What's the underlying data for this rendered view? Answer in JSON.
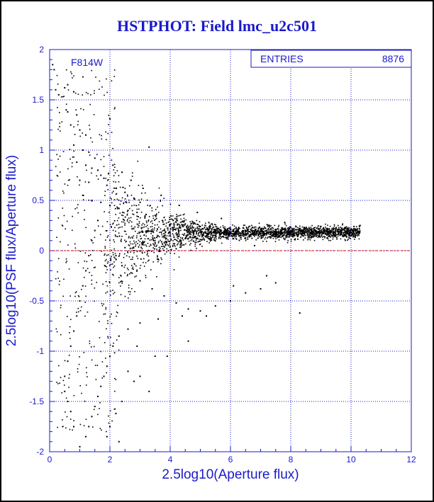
{
  "colors": {
    "axis": "#1a1acc",
    "grid": "#1a1acc",
    "points": "#000000",
    "reference_line": "#cc0000",
    "title": "#1a1acc"
  },
  "chart_data": {
    "type": "scatter",
    "title": "HSTPHOT: Field lmc_u2c501",
    "xlabel": "2.5log10(Aperture flux)",
    "ylabel": "2.5log10(PSF flux/Aperture flux)",
    "xlim": [
      0,
      12
    ],
    "ylim": [
      -2,
      2
    ],
    "xticks": [
      "0",
      "2",
      "4",
      "6",
      "8",
      "10",
      "12"
    ],
    "yticks": [
      "-2",
      "-1.5",
      "-1",
      "-0.5",
      "0",
      "0.5",
      "1",
      "1.5",
      "2"
    ],
    "grid": true,
    "filter_label": "F814W",
    "stats": {
      "entries_label": "ENTRIES",
      "entries_value": "8876"
    },
    "reference_line_y": 0,
    "points": [
      [
        0.1,
        1.85
      ],
      [
        0.15,
        1.8
      ],
      [
        0.2,
        1.6
      ],
      [
        0.3,
        1.55
      ],
      [
        0.5,
        1.62
      ],
      [
        0.6,
        1.65
      ],
      [
        0.8,
        1.58
      ],
      [
        0.55,
        1.4
      ],
      [
        0.6,
        1.38
      ],
      [
        0.9,
        1.35
      ],
      [
        0.7,
        1.25
      ],
      [
        1.0,
        1.2
      ],
      [
        1.2,
        1.15
      ],
      [
        0.8,
        1.05
      ],
      [
        1.1,
        1.0
      ],
      [
        1.3,
        0.98
      ],
      [
        1.5,
        0.92
      ],
      [
        0.9,
        0.88
      ],
      [
        1.2,
        0.85
      ],
      [
        1.4,
        0.82
      ],
      [
        1.6,
        0.8
      ],
      [
        1.7,
        0.75
      ],
      [
        1.0,
        0.7
      ],
      [
        1.3,
        0.68
      ],
      [
        1.8,
        0.72
      ],
      [
        1.9,
        0.65
      ],
      [
        3.3,
        1.03
      ],
      [
        2.2,
        0.62
      ],
      [
        2.5,
        0.58
      ],
      [
        2.8,
        0.52
      ],
      [
        3.0,
        0.48
      ],
      [
        1.1,
        0.55
      ],
      [
        1.4,
        0.5
      ],
      [
        1.7,
        0.48
      ],
      [
        2.0,
        0.45
      ],
      [
        2.3,
        0.42
      ],
      [
        2.6,
        0.4
      ],
      [
        2.9,
        0.38
      ],
      [
        3.2,
        0.36
      ],
      [
        3.5,
        0.35
      ],
      [
        3.8,
        0.33
      ],
      [
        4.1,
        0.3
      ],
      [
        4.4,
        0.29
      ],
      [
        4.7,
        0.27
      ],
      [
        5.0,
        0.24
      ],
      [
        5.3,
        0.23
      ],
      [
        5.6,
        0.22
      ],
      [
        5.9,
        0.21
      ],
      [
        6.2,
        0.2
      ],
      [
        6.5,
        0.2
      ],
      [
        6.8,
        0.19
      ],
      [
        7.1,
        0.19
      ],
      [
        7.4,
        0.18
      ],
      [
        7.7,
        0.18
      ],
      [
        8.0,
        0.18
      ],
      [
        8.3,
        0.2
      ],
      [
        8.6,
        0.2
      ],
      [
        8.9,
        0.19
      ],
      [
        9.2,
        0.2
      ],
      [
        9.5,
        0.22
      ],
      [
        9.8,
        0.23
      ],
      [
        10.1,
        0.24
      ],
      [
        10.3,
        0.25
      ],
      [
        9.0,
        0.24
      ],
      [
        8.5,
        0.22
      ],
      [
        7.5,
        0.21
      ],
      [
        6.5,
        0.17
      ],
      [
        5.5,
        0.15
      ],
      [
        4.5,
        0.12
      ],
      [
        3.5,
        0.08
      ],
      [
        2.5,
        0.03
      ],
      [
        2.2,
        -0.05
      ],
      [
        2.4,
        -0.15
      ],
      [
        2.7,
        -0.22
      ],
      [
        3.0,
        -0.3
      ],
      [
        3.4,
        -0.38
      ],
      [
        3.8,
        -0.45
      ],
      [
        4.2,
        -0.52
      ],
      [
        4.6,
        -0.58
      ],
      [
        5.0,
        -0.6
      ],
      [
        5.5,
        -0.55
      ],
      [
        6.0,
        -0.5
      ],
      [
        6.5,
        -0.42
      ],
      [
        7.0,
        -0.38
      ],
      [
        7.5,
        -0.32
      ],
      [
        8.3,
        -0.62
      ],
      [
        5.2,
        -0.65
      ],
      [
        4.4,
        -0.65
      ],
      [
        3.6,
        -0.68
      ],
      [
        3.0,
        -0.72
      ],
      [
        2.6,
        -0.78
      ],
      [
        2.3,
        -0.85
      ],
      [
        2.1,
        -0.95
      ],
      [
        2.0,
        -1.05
      ],
      [
        1.9,
        -1.15
      ],
      [
        1.8,
        -1.25
      ],
      [
        1.7,
        -1.35
      ],
      [
        1.6,
        -1.45
      ],
      [
        1.5,
        -1.55
      ],
      [
        1.4,
        -1.65
      ],
      [
        1.3,
        -1.75
      ],
      [
        1.2,
        -1.85
      ],
      [
        1.0,
        -1.95
      ],
      [
        0.8,
        -1.75
      ],
      [
        0.7,
        -1.6
      ],
      [
        0.6,
        -1.5
      ],
      [
        0.5,
        -1.4
      ],
      [
        0.5,
        -1.25
      ],
      [
        0.6,
        -1.1
      ],
      [
        0.7,
        -0.95
      ],
      [
        0.8,
        -0.8
      ],
      [
        0.9,
        -0.65
      ],
      [
        1.0,
        -0.5
      ],
      [
        1.1,
        -0.35
      ],
      [
        1.2,
        -0.2
      ],
      [
        1.3,
        -0.05
      ],
      [
        1.4,
        0.1
      ],
      [
        1.5,
        0.2
      ],
      [
        1.6,
        0.3
      ],
      [
        2.6,
        -1.2
      ],
      [
        2.8,
        -1.3
      ],
      [
        3.0,
        -1.25
      ],
      [
        3.3,
        -1.4
      ],
      [
        2.4,
        -1.5
      ],
      [
        2.2,
        -1.62
      ],
      [
        2.0,
        -1.75
      ],
      [
        1.9,
        -1.85
      ],
      [
        2.3,
        -1.9
      ],
      [
        4.6,
        -0.9
      ],
      [
        3.9,
        -1.05
      ],
      [
        3.5,
        -1.05
      ],
      [
        2.9,
        -0.95
      ],
      [
        6.1,
        -0.35
      ],
      [
        7.2,
        -0.25
      ],
      [
        6.8,
        0.05
      ],
      [
        7.8,
        0.28
      ],
      [
        5.7,
        0.32
      ],
      [
        4.9,
        0.38
      ],
      [
        4.3,
        0.45
      ],
      [
        3.7,
        0.55
      ],
      [
        3.1,
        0.62
      ],
      [
        2.7,
        0.7
      ],
      [
        2.4,
        0.78
      ],
      [
        2.1,
        0.85
      ]
    ]
  }
}
